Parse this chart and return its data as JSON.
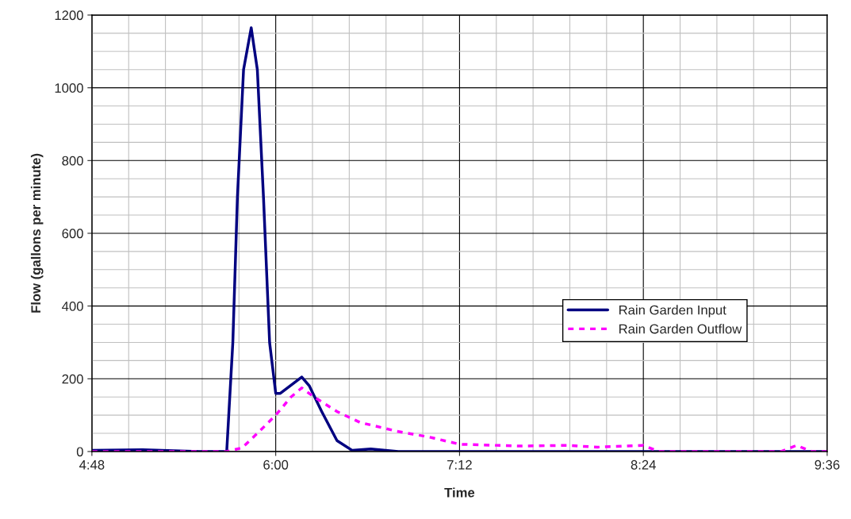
{
  "chart_data": {
    "type": "line",
    "xlabel": "Time",
    "ylabel": "Flow (gallons per minute)",
    "xlim": [
      4.8,
      9.6
    ],
    "xticks": [
      {
        "value": 4.8,
        "label": "4:48"
      },
      {
        "value": 6.0,
        "label": "6:00"
      },
      {
        "value": 7.2,
        "label": "7:12"
      },
      {
        "value": 8.4,
        "label": "8:24"
      },
      {
        "value": 9.6,
        "label": "9:36"
      }
    ],
    "ylim": [
      0,
      1200
    ],
    "yticks": [
      0,
      200,
      400,
      600,
      800,
      1000,
      1200
    ],
    "grid": true,
    "legend": "right",
    "marker": "none",
    "series": [
      {
        "name": "Rain Garden Input",
        "color": "#000080",
        "line_style": "solid",
        "x": [
          4.8,
          5.13,
          5.5,
          5.65,
          5.68,
          5.72,
          5.75,
          5.79,
          5.84,
          5.88,
          5.92,
          5.96,
          6.0,
          6.03,
          6.17,
          6.22,
          6.3,
          6.4,
          6.5,
          6.62,
          6.8,
          9.6
        ],
        "values": [
          3,
          5,
          0,
          0,
          0,
          300,
          700,
          1050,
          1165,
          1050,
          700,
          300,
          160,
          160,
          205,
          180,
          110,
          30,
          3,
          7,
          0,
          0
        ]
      },
      {
        "name": "Rain Garden Outflow",
        "color": "#ff00ff",
        "line_style": "dashed",
        "x": [
          4.8,
          5.68,
          5.78,
          5.88,
          6.0,
          6.1,
          6.17,
          6.25,
          6.4,
          6.55,
          6.8,
          7.0,
          7.2,
          7.6,
          7.9,
          8.1,
          8.4,
          8.5,
          9.3,
          9.4,
          9.5,
          9.6
        ],
        "values": [
          0,
          0,
          10,
          50,
          100,
          150,
          175,
          150,
          110,
          80,
          55,
          40,
          20,
          15,
          17,
          12,
          17,
          0,
          0,
          17,
          0,
          0
        ]
      }
    ]
  }
}
